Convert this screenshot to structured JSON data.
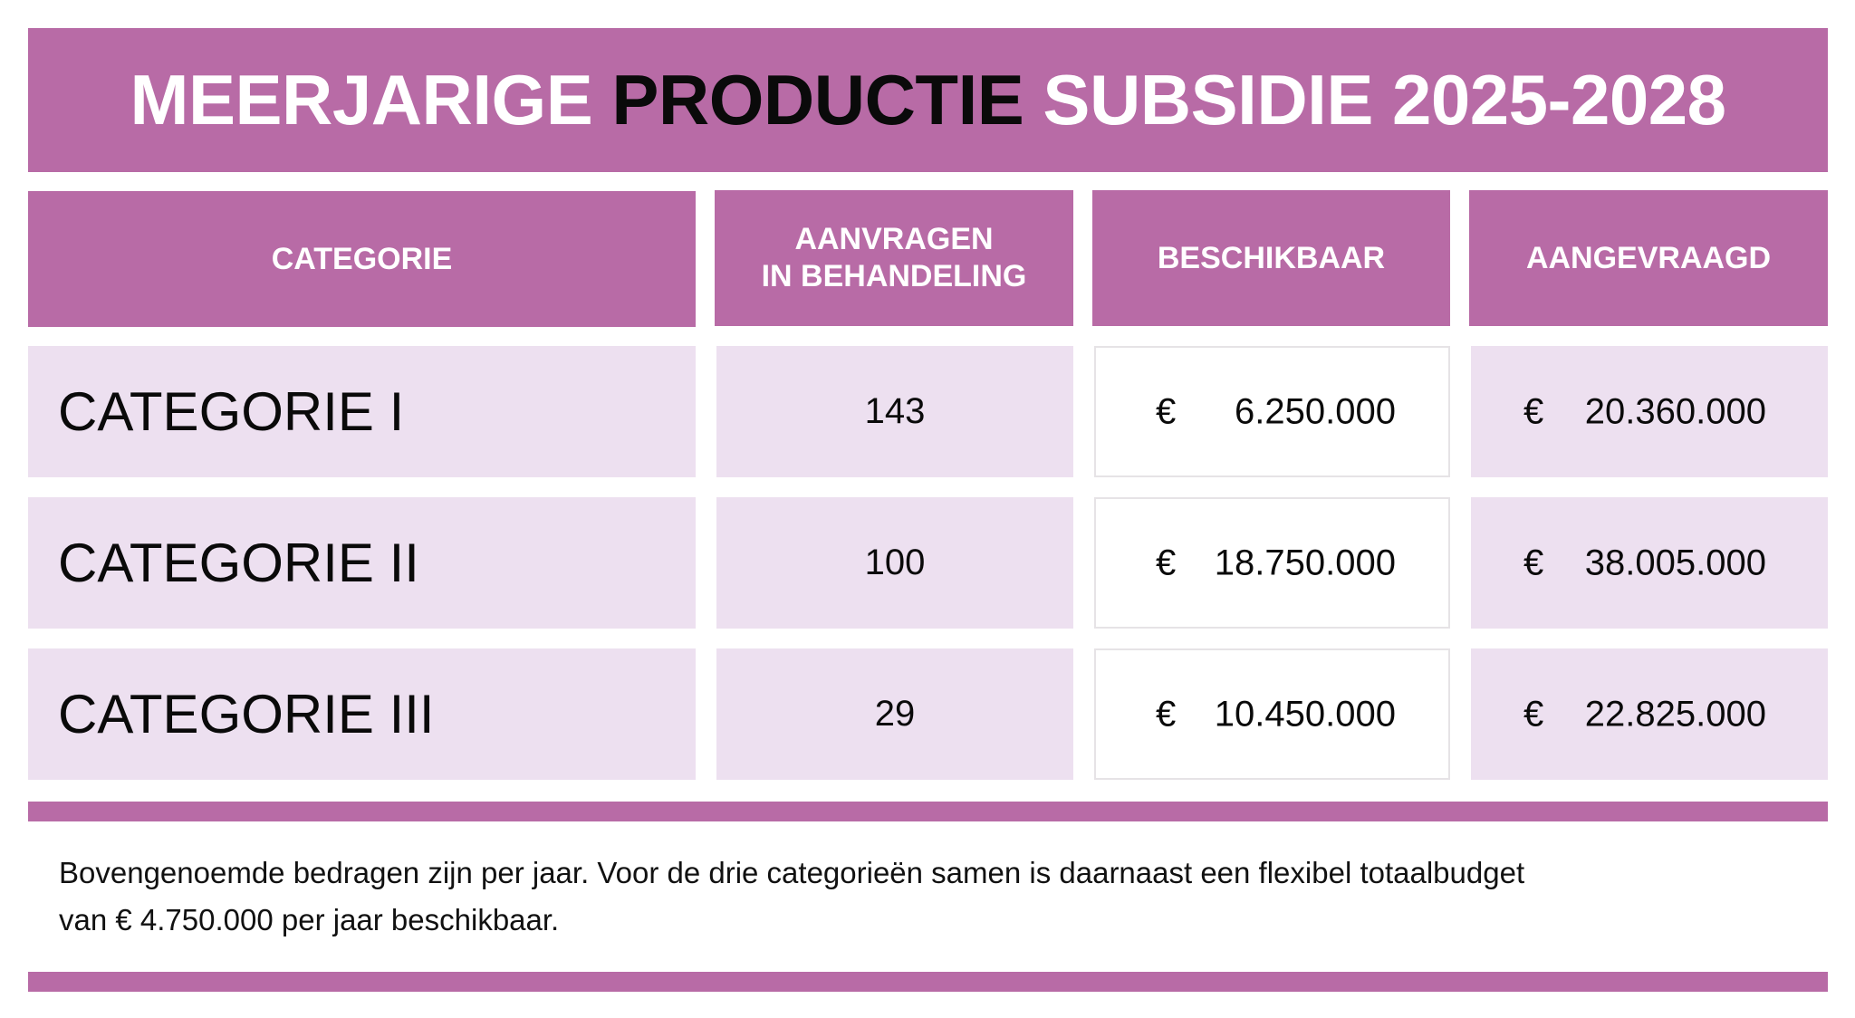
{
  "title": {
    "part1": "MEERJARIGE ",
    "part2": "PRODUCTIE",
    "part3": " SUBSIDIE 2025-2028"
  },
  "colors": {
    "accent": "#b86ba6",
    "row_fill": "#ede0f0"
  },
  "table": {
    "headers": [
      "CATEGORIE",
      "AANVRAGEN",
      "IN BEHANDELING",
      "BESCHIKBAAR",
      "AANGEVRAAGD"
    ],
    "rows": [
      {
        "categorie": "CATEGORIE I",
        "aanvragen": "143",
        "beschikbaar_currency": "€",
        "beschikbaar": "6.250.000",
        "aangevraagd_currency": "€",
        "aangevraagd": "20.360.000"
      },
      {
        "categorie": "CATEGORIE II",
        "aanvragen": "100",
        "beschikbaar_currency": "€",
        "beschikbaar": "18.750.000",
        "aangevraagd_currency": "€",
        "aangevraagd": "38.005.000"
      },
      {
        "categorie": "CATEGORIE III",
        "aanvragen": "29",
        "beschikbaar_currency": "€",
        "beschikbaar": "10.450.000",
        "aangevraagd_currency": "€",
        "aangevraagd": "22.825.000"
      }
    ]
  },
  "note": {
    "line1": "Bovengenoemde bedragen zijn per jaar. Voor de drie categorieën samen is daarnaast een flexibel totaalbudget",
    "line2": "van € 4.750.000 per jaar beschikbaar."
  }
}
